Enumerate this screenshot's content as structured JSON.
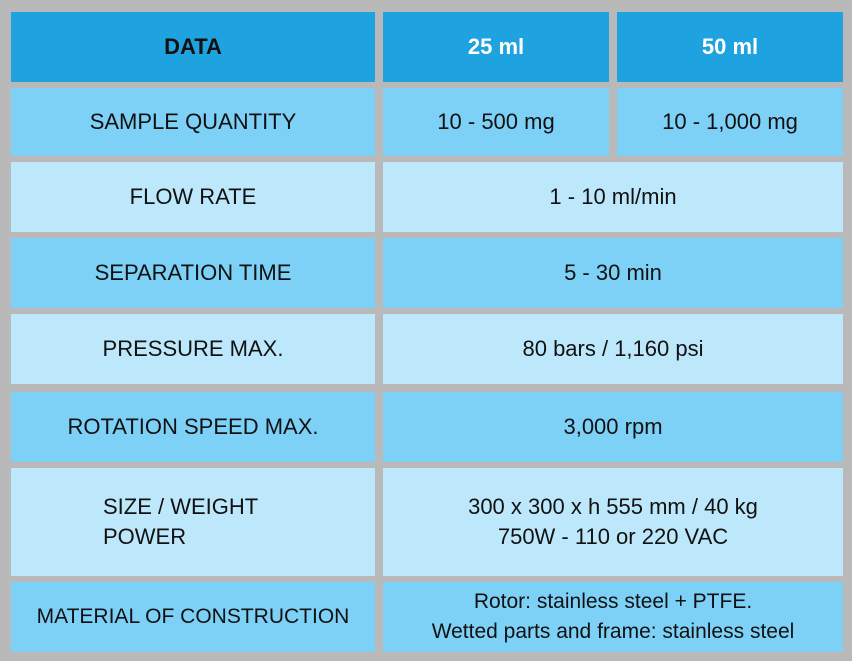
{
  "header": {
    "col1": "DATA",
    "col2": "25 ml",
    "col3": "50 ml"
  },
  "rows": {
    "sample_quantity": {
      "label": "SAMPLE QUANTITY",
      "value_25": "10 - 500 mg",
      "value_50": "10 - 1,000 mg"
    },
    "flow_rate": {
      "label": "FLOW RATE",
      "value": "1 - 10 ml/min"
    },
    "separation_time": {
      "label": "SEPARATION TIME",
      "value": "5 - 30 min"
    },
    "pressure_max": {
      "label": "PRESSURE MAX.",
      "value": "80 bars / 1,160 psi"
    },
    "rotation_speed": {
      "label": "ROTATION SPEED MAX.",
      "value": "3,000 rpm"
    },
    "size_weight_power": {
      "label_line1": "SIZE / WEIGHT",
      "label_line2": "POWER",
      "value_line1": "300 x 300 x h 555 mm / 40 kg",
      "value_line2": "750W - 110 or 220 VAC"
    },
    "material": {
      "label": "MATERIAL OF CONSTRUCTION",
      "value_line1": "Rotor: stainless steel + PTFE.",
      "value_line2": "Wetted parts and frame: stainless steel"
    }
  },
  "colors": {
    "header_bg": "#1fa3e0",
    "row_mid_bg": "#7dd1f7",
    "row_pale_bg": "#bde8fb",
    "grid_lines": "#b9b9b9"
  }
}
